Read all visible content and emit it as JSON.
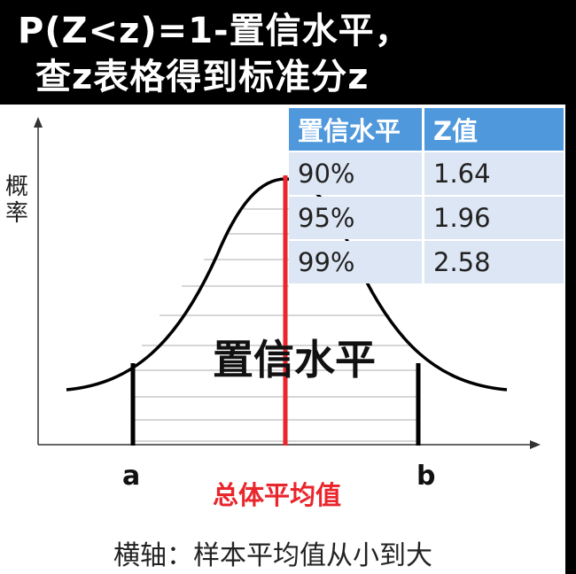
{
  "header": {
    "line1": "P(Z<z)=1-置信水平，",
    "line2": "查z表格得到标准分z"
  },
  "diagram": {
    "ylabel": "概率",
    "xlabel": "横轴：样本平均值从小到大",
    "center_label": "置信水平",
    "label_a": "a",
    "label_b": "b",
    "mean_label": "总体平均值"
  },
  "table": {
    "headers": [
      "置信水平",
      "Z值"
    ],
    "rows": [
      [
        "90%",
        "1.64"
      ],
      [
        "95%",
        "1.96"
      ],
      [
        "99%",
        "2.58"
      ]
    ]
  },
  "colors": {
    "table_header": "#4f98dc",
    "table_cell": "#dde6f4",
    "mean_line": "#e8262c"
  }
}
